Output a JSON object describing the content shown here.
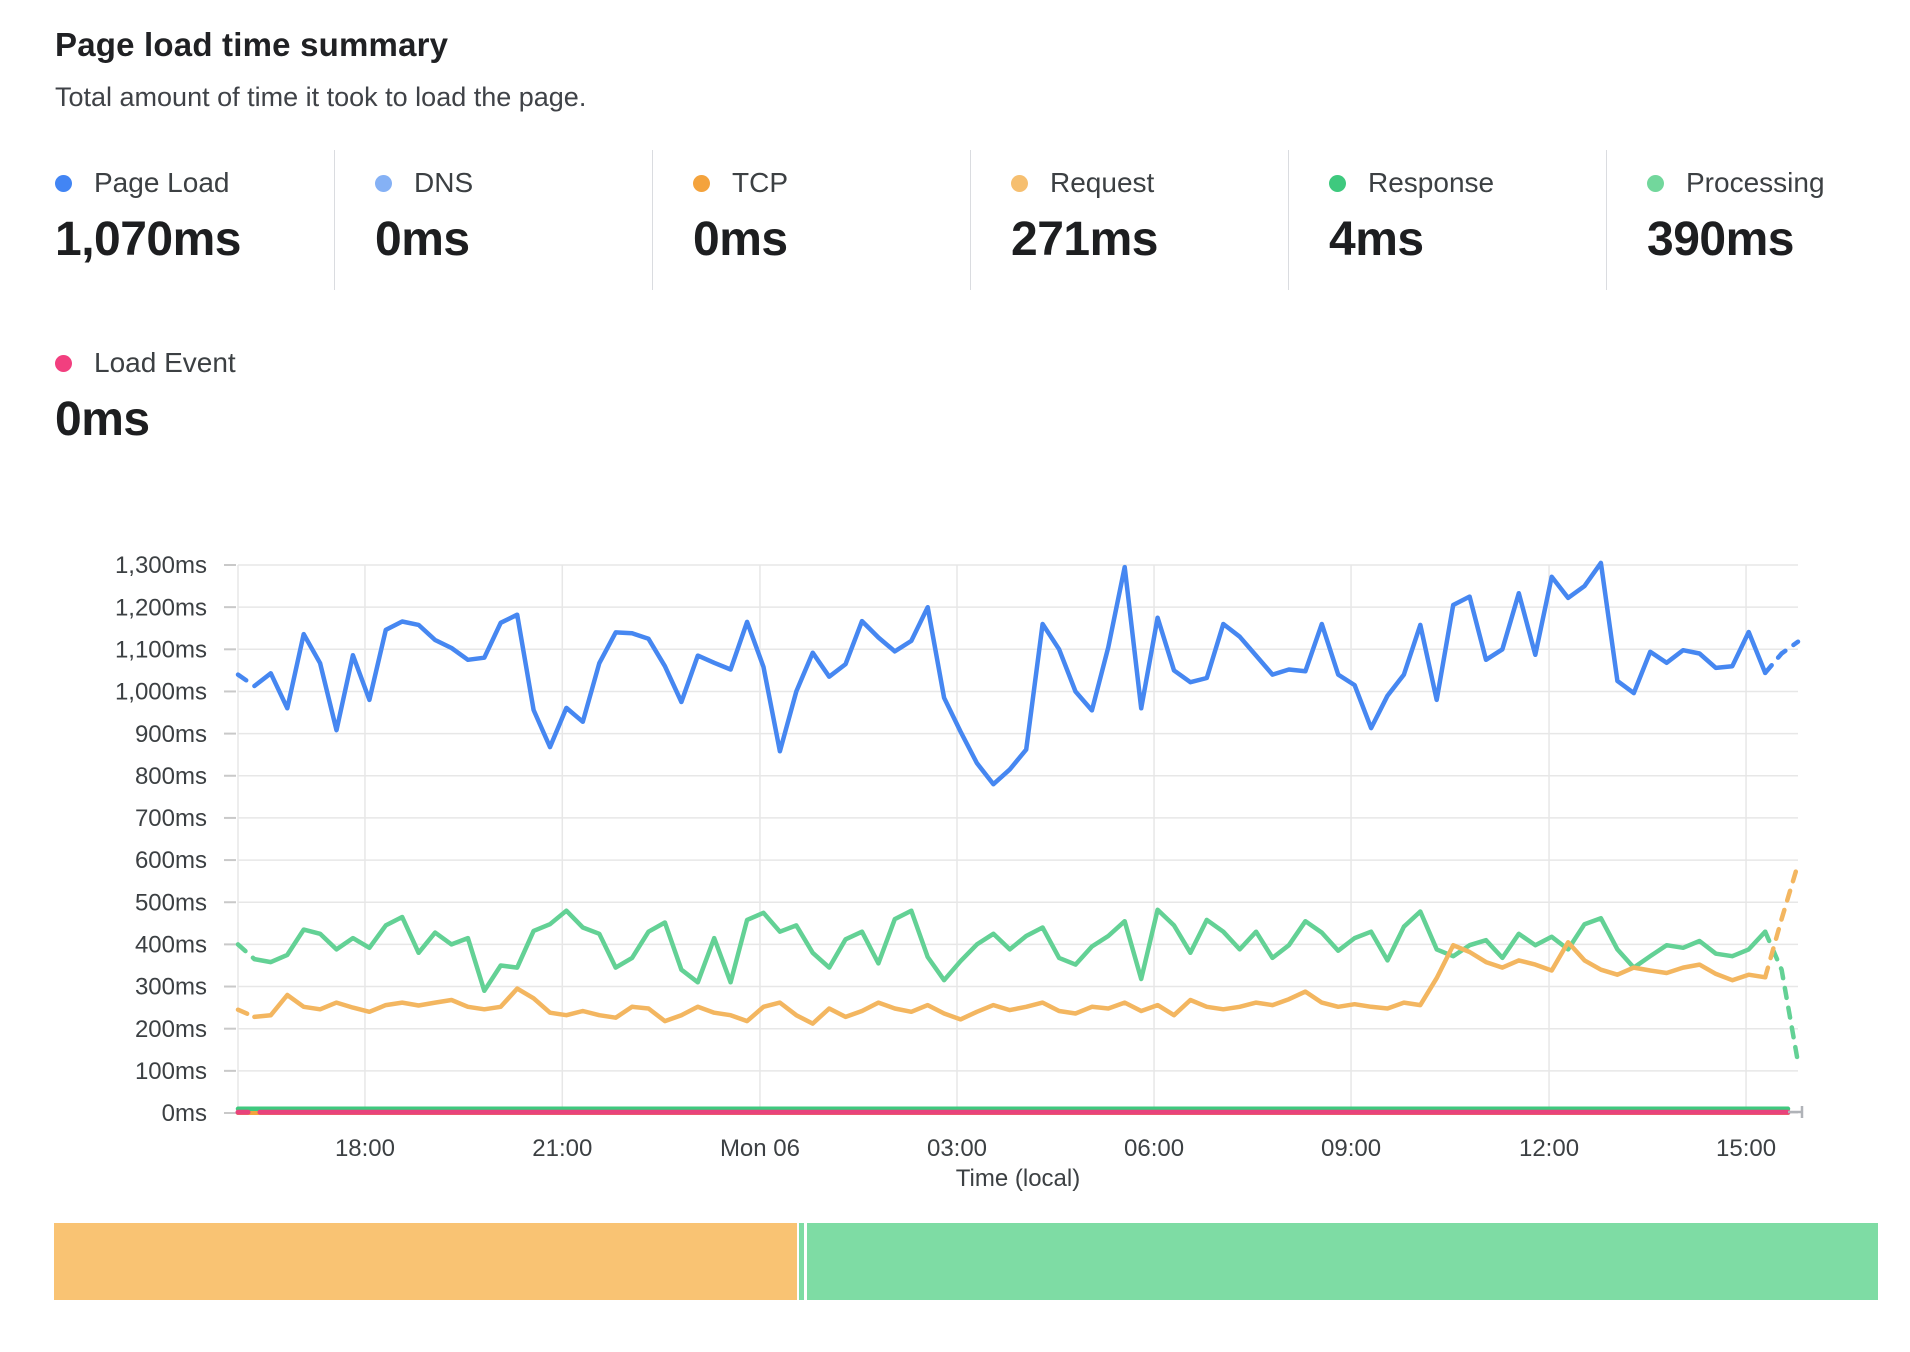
{
  "header": {
    "title": "Page load time summary",
    "subtitle": "Total amount of time it took to load the page."
  },
  "stats": [
    {
      "label": "Page Load",
      "value": "1,070ms",
      "color": "#4285f4"
    },
    {
      "label": "DNS",
      "value": "0ms",
      "color": "#85b1f5"
    },
    {
      "label": "TCP",
      "value": "0ms",
      "color": "#f4a33d"
    },
    {
      "label": "Request",
      "value": "271ms",
      "color": "#f6bf70"
    },
    {
      "label": "Response",
      "value": "4ms",
      "color": "#3ec97e"
    },
    {
      "label": "Processing",
      "value": "390ms",
      "color": "#72d79c"
    },
    {
      "label": "Load Event",
      "value": "0ms",
      "color": "#f23f7f"
    }
  ],
  "chart_data": {
    "type": "line",
    "title": "Page load time summary",
    "xlabel": "Time (local)",
    "ylabel": "",
    "ylim": [
      0,
      1300
    ],
    "grid": true,
    "legend_position": "top-stats",
    "sample_interval_minutes": 15,
    "y_ticks": [
      "0ms",
      "100ms",
      "200ms",
      "300ms",
      "400ms",
      "500ms",
      "600ms",
      "700ms",
      "800ms",
      "900ms",
      "1,000ms",
      "1,100ms",
      "1,200ms",
      "1,300ms"
    ],
    "x_ticks": [
      {
        "label": "18:00",
        "f": 0.0814
      },
      {
        "label": "21:00",
        "f": 0.2079
      },
      {
        "label": "Mon 06",
        "f": 0.3346
      },
      {
        "label": "03:00",
        "f": 0.4609
      },
      {
        "label": "06:00",
        "f": 0.5872
      },
      {
        "label": "09:00",
        "f": 0.7135
      },
      {
        "label": "12:00",
        "f": 0.8404
      },
      {
        "label": "15:00",
        "f": 0.9667
      }
    ],
    "series": [
      {
        "name": "DNS",
        "color": "#85b1f5",
        "constant": 0,
        "render_constant": 0,
        "width": 4
      },
      {
        "name": "TCP",
        "color": "#f4a33d",
        "constant": 0,
        "render_constant": 0,
        "width": 4
      },
      {
        "name": "Response",
        "color": "#3ec97e",
        "constant": 4,
        "render_constant": 10,
        "width": 4.5
      },
      {
        "name": "Processing",
        "color": "#63d195",
        "width": 4.5,
        "dash_head": 1,
        "dash_tail": 2,
        "values": [
          400,
          365,
          358,
          375,
          435,
          425,
          388,
          415,
          392,
          445,
          465,
          380,
          428,
          400,
          415,
          290,
          350,
          345,
          432,
          448,
          480,
          440,
          425,
          345,
          368,
          430,
          452,
          340,
          310,
          415,
          310,
          458,
          475,
          430,
          445,
          380,
          345,
          412,
          430,
          355,
          460,
          480,
          370,
          315,
          360,
          400,
          425,
          388,
          420,
          440,
          368,
          352,
          395,
          420,
          455,
          318,
          482,
          445,
          380,
          458,
          430,
          388,
          430,
          368,
          398,
          455,
          428,
          385,
          415,
          430,
          362,
          442,
          478,
          388,
          372,
          398,
          410,
          368,
          425,
          398,
          418,
          388,
          448,
          462,
          388,
          345,
          372,
          398,
          392,
          408,
          378,
          372,
          388,
          430,
          340,
          120
        ]
      },
      {
        "name": "Request",
        "color": "#f3b660",
        "width": 4.5,
        "dash_head": 1,
        "dash_tail": 2,
        "values": [
          245,
          228,
          232,
          280,
          252,
          246,
          262,
          250,
          240,
          256,
          262,
          255,
          262,
          268,
          252,
          246,
          252,
          295,
          272,
          238,
          232,
          242,
          232,
          226,
          252,
          248,
          218,
          232,
          252,
          238,
          232,
          218,
          252,
          262,
          232,
          212,
          248,
          228,
          242,
          262,
          248,
          240,
          256,
          236,
          222,
          240,
          256,
          244,
          252,
          262,
          242,
          236,
          252,
          248,
          262,
          242,
          256,
          232,
          268,
          252,
          246,
          252,
          262,
          256,
          270,
          288,
          262,
          252,
          258,
          252,
          248,
          262,
          256,
          320,
          398,
          382,
          358,
          345,
          362,
          352,
          338,
          405,
          362,
          340,
          328,
          345,
          338,
          332,
          345,
          352,
          330,
          315,
          328,
          322,
          460,
          590
        ]
      },
      {
        "name": "Page Load",
        "color": "#4687f1",
        "width": 4.5,
        "dash_head": 1,
        "dash_tail": 2,
        "values": [
          1040,
          1013,
          1043,
          960,
          1136,
          1067,
          908,
          1086,
          980,
          1146,
          1166,
          1158,
          1122,
          1103,
          1075,
          1080,
          1163,
          1182,
          956,
          868,
          961,
          928,
          1067,
          1140,
          1138,
          1125,
          1060,
          975,
          1085,
          1068,
          1052,
          1165,
          1058,
          858,
          1000,
          1092,
          1035,
          1065,
          1167,
          1128,
          1095,
          1120,
          1200,
          985,
          905,
          830,
          780,
          815,
          862,
          1160,
          1100,
          1000,
          955,
          1105,
          1295,
          960,
          1175,
          1050,
          1022,
          1032,
          1160,
          1130,
          1085,
          1040,
          1052,
          1048,
          1160,
          1040,
          1015,
          913,
          990,
          1040,
          1158,
          980,
          1205,
          1225,
          1075,
          1100,
          1233,
          1087,
          1272,
          1222,
          1250,
          1305,
          1025,
          996,
          1094,
          1068,
          1098,
          1090,
          1056,
          1060,
          1141,
          1044,
          1090,
          1118
        ]
      },
      {
        "name": "Load Event",
        "color": "#e8437c",
        "constant": 0,
        "render_constant": 2,
        "width": 5,
        "dash_head": 1
      }
    ]
  },
  "timeline_bar": {
    "segments": [
      {
        "name": "request-phase",
        "color": "#f9c373",
        "fraction": 0.4073
      },
      {
        "name": "gap",
        "color": "#ffffff",
        "fraction": 0.0014
      },
      {
        "name": "processing-sliver",
        "color": "#7edca4",
        "fraction": 0.0027
      },
      {
        "name": "gap",
        "color": "#ffffff",
        "fraction": 0.0014
      },
      {
        "name": "processing-phase",
        "color": "#7edca4",
        "fraction": 0.5872
      }
    ]
  },
  "chart_colors": {
    "grid": "#e7e7e7",
    "tick": "#c9c9c9",
    "axis_text": "#3c4043",
    "end_cap": "#b0b3b8"
  }
}
